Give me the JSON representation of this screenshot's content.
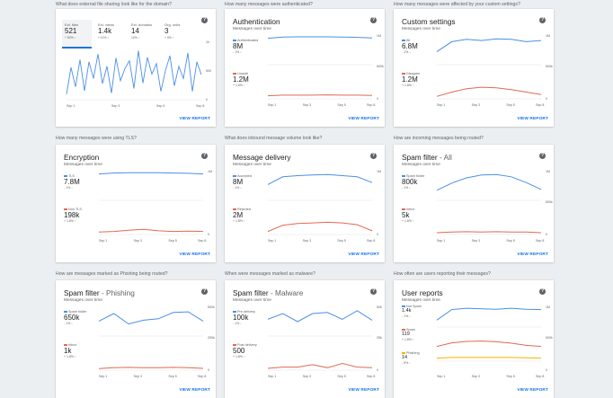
{
  "colors": {
    "blue": "#4a8fe7",
    "red": "#e06a52",
    "yellow": "#f4b400",
    "link": "#1a73e8"
  },
  "common": {
    "view_report": "VIEW REPORT",
    "subtitle": "Messages over time",
    "help_icon": "?"
  },
  "cards": [
    {
      "question": "What does external file sharing look like for the domain?",
      "tabs": [
        {
          "label": "Ext. files",
          "value": "521",
          "change": "+ 52% ↑"
        },
        {
          "label": "Ext. views",
          "value": "1.4k",
          "change": "+ 11% ↑"
        },
        {
          "label": "Ext. domains",
          "value": "14",
          "change": "12% ↓"
        },
        {
          "label": "Org. units",
          "value": "3",
          "change": "+ 0% ↑"
        }
      ],
      "yticks": [
        "1k",
        "500",
        "0"
      ],
      "xticks": [
        "Sep 1",
        "Sep 3",
        "Sep 5",
        "Sep 8"
      ],
      "chart_data": {
        "type": "line",
        "x": [
          "Sep 1",
          "",
          "",
          "",
          "",
          "",
          "",
          "",
          "",
          "",
          "",
          "",
          "",
          "",
          "",
          "",
          "",
          "",
          "",
          "",
          "",
          "",
          "",
          "",
          "",
          "",
          "",
          "",
          "",
          "",
          "Sep 8"
        ],
        "series": [
          {
            "values": [
              100,
              580,
              230,
              720,
              160,
              680,
              380,
              820,
              290,
              600,
              120,
              750,
              340,
              560,
              700,
              200,
              880,
              300,
              760,
              460,
              650,
              150,
              520,
              790,
              250,
              600,
              380,
              840,
              150,
              680,
              450
            ]
          }
        ]
      }
    },
    {
      "question": "How many messages were authenticated?",
      "title": "Authentication",
      "title_sub": "",
      "metrics": [
        {
          "label": "Authenticated",
          "value": "8M",
          "change": "- 1% ↓",
          "color": "#4a8fe7"
        },
        {
          "label": "Unauth",
          "value": "1.2M",
          "change": "+ 1.6% ↑",
          "color": "#e06a52"
        }
      ],
      "yticks": [
        "1M",
        "500k",
        "0"
      ],
      "xticks": [
        "Sep 1",
        "Sep 3",
        "Sep 5",
        "Sep 8"
      ],
      "chart_data": {
        "type": "line",
        "x": [
          "Sep 1",
          "",
          "",
          "",
          "",
          "",
          "",
          "Sep 8"
        ],
        "series": [
          {
            "name": "Authenticated",
            "values": [
              0.92,
              0.96,
              0.97,
              0.97,
              0.97,
              0.96,
              0.95,
              0.93
            ]
          },
          {
            "name": "Unauth",
            "values": [
              0.1,
              0.12,
              0.12,
              0.12,
              0.13,
              0.12,
              0.12,
              0.11
            ]
          }
        ]
      }
    },
    {
      "question": "How many messages were affected by your custom settings?",
      "title": "Custom settings",
      "title_sub": "",
      "metrics": [
        {
          "label": "All",
          "value": "6.8M",
          "change": "- 1% ↓",
          "color": "#4a8fe7"
        },
        {
          "label": "Disagree",
          "value": "1.2M",
          "change": "+ 1.8% ↑",
          "color": "#e06a52"
        }
      ],
      "yticks": [
        "1M",
        "500k",
        "0"
      ],
      "xticks": [
        "Sep 1",
        "Sep 3",
        "Sep 5",
        "Sep 8"
      ],
      "chart_data": {
        "type": "line",
        "x": [
          "Sep 1",
          "",
          "",
          "",
          "",
          "",
          "",
          "Sep 8"
        ],
        "series": [
          {
            "name": "All",
            "values": [
              0.45,
              0.8,
              0.88,
              0.84,
              0.9,
              0.88,
              0.8,
              0.84
            ]
          },
          {
            "name": "Disagree",
            "values": [
              0.08,
              0.22,
              0.33,
              0.38,
              0.36,
              0.3,
              0.22,
              0.14
            ]
          }
        ]
      }
    },
    {
      "question": "How many messages were using TLS?",
      "title": "Encryption",
      "title_sub": "",
      "metrics": [
        {
          "label": "TLS",
          "value": "7.8M",
          "change": "- 1% ↓",
          "color": "#4a8fe7"
        },
        {
          "label": "Non TLS",
          "value": "198k",
          "change": "+ 1.8% ↑",
          "color": "#e06a52"
        }
      ],
      "yticks": [
        "1M",
        "0"
      ],
      "xticks": [
        "Sep 1",
        "Sep 3",
        "Sep 5",
        "Sep 8"
      ],
      "chart_data": {
        "type": "line",
        "x": [
          "Sep 1",
          "",
          "",
          "",
          "",
          "",
          "",
          "Sep 8"
        ],
        "series": [
          {
            "name": "TLS",
            "values": [
              0.92,
              0.95,
              0.96,
              0.96,
              0.96,
              0.95,
              0.94,
              0.92
            ]
          },
          {
            "name": "Non TLS",
            "values": [
              0.08,
              0.1,
              0.14,
              0.17,
              0.12,
              0.1,
              0.11,
              0.1
            ]
          }
        ]
      }
    },
    {
      "question": "What does inbound message volume look like?",
      "title": "Message delivery",
      "title_sub": "",
      "metrics": [
        {
          "label": "Accepted",
          "value": "8M",
          "change": "- 1% ↓",
          "color": "#4a8fe7"
        },
        {
          "label": "Rejected",
          "value": "2M",
          "change": "+ 1.8% ↑",
          "color": "#e06a52"
        }
      ],
      "yticks": [
        "1M",
        "0"
      ],
      "xticks": [
        "Sep 1",
        "Sep 3",
        "Sep 5",
        "Sep 8"
      ],
      "chart_data": {
        "type": "line",
        "x": [
          "Sep 1",
          "",
          "",
          "",
          "",
          "",
          "",
          "Sep 8"
        ],
        "series": [
          {
            "name": "Accepted",
            "values": [
              0.55,
              0.82,
              0.86,
              0.88,
              0.9,
              0.86,
              0.82,
              0.62
            ]
          },
          {
            "name": "Rejected",
            "values": [
              0.1,
              0.3,
              0.36,
              0.38,
              0.4,
              0.38,
              0.32,
              0.12
            ]
          }
        ]
      }
    },
    {
      "question": "How are incoming messages being routed?",
      "title": "Spam filter",
      "title_sub": " - All",
      "metrics": [
        {
          "label": "Spam folder",
          "value": "800k",
          "change": "- 1% ↓",
          "color": "#4a8fe7"
        },
        {
          "label": "Inbox",
          "value": "5k",
          "change": "+ 1.8% ↑",
          "color": "#e06a52"
        }
      ],
      "yticks": [
        "1M",
        "500k",
        "0"
      ],
      "xticks": [
        "Sep 1",
        "Sep 3",
        "Sep 5",
        "Sep 8"
      ],
      "chart_data": {
        "type": "line",
        "x": [
          "Sep 1",
          "",
          "",
          "",
          "",
          "",
          "",
          "Sep 8"
        ],
        "series": [
          {
            "name": "Spam folder",
            "values": [
              0.35,
              0.6,
              0.78,
              0.88,
              0.9,
              0.82,
              0.62,
              0.38
            ]
          },
          {
            "name": "Inbox",
            "values": [
              0.06,
              0.08,
              0.09,
              0.08,
              0.09,
              0.08,
              0.08,
              0.06
            ]
          }
        ]
      }
    },
    {
      "question": "How are messages marked as Phishing being routed?",
      "title": "Spam filter",
      "title_sub": " - Phishing",
      "metrics": [
        {
          "label": "Spam folder",
          "value": "650k",
          "change": "- 1% ↓",
          "color": "#4a8fe7"
        },
        {
          "label": "Inbox",
          "value": "1k",
          "change": "+ 1.8% ↑",
          "color": "#e06a52"
        }
      ],
      "yticks": [
        "500k",
        "250k",
        "0"
      ],
      "xticks": [
        "Sep 1",
        "Sep 3",
        "Sep 5",
        "Sep 8"
      ],
      "chart_data": {
        "type": "line",
        "x": [
          "Sep 1",
          "",
          "",
          "",
          "",
          "",
          "",
          "Sep 8"
        ],
        "series": [
          {
            "name": "Spam folder",
            "values": [
              0.52,
              0.78,
              0.42,
              0.55,
              0.6,
              0.82,
              0.84,
              0.52
            ]
          },
          {
            "name": "Inbox",
            "values": [
              0.05,
              0.08,
              0.09,
              0.08,
              0.08,
              0.09,
              0.08,
              0.06
            ]
          }
        ]
      }
    },
    {
      "question": "When were messages marked as malware?",
      "title": "Spam filter",
      "title_sub": " - Malware",
      "metrics": [
        {
          "label": "Pre delivery",
          "value": "100k",
          "change": "- 1% ↓",
          "color": "#4a8fe7"
        },
        {
          "label": "Post delivery",
          "value": "500",
          "change": "+ 1.8% ↑",
          "color": "#e06a52"
        }
      ],
      "yticks": [
        "50k",
        "25k",
        "0"
      ],
      "xticks": [
        "Sep 1",
        "Sep 3",
        "Sep 5",
        "Sep 8"
      ],
      "chart_data": {
        "type": "line",
        "x": [
          "Sep 1",
          "",
          "",
          "",
          "",
          "",
          "",
          "Sep 8"
        ],
        "series": [
          {
            "name": "Pre delivery",
            "values": [
              0.58,
              0.78,
              0.5,
              0.78,
              0.82,
              0.58,
              0.88,
              0.55
            ]
          },
          {
            "name": "Post delivery",
            "values": [
              0.06,
              0.1,
              0.1,
              0.18,
              0.08,
              0.22,
              0.1,
              0.08
            ]
          }
        ]
      }
    },
    {
      "question": "How often are users reporting their messages?",
      "title": "User reports",
      "title_sub": "",
      "metrics": [
        {
          "label": "Not Spam",
          "value": "1.4k",
          "change": "- 1% ↓",
          "color": "#4a8fe7"
        },
        {
          "label": "Spam",
          "value": "119",
          "change": "+ 1.8% ↑",
          "color": "#e06a52"
        },
        {
          "label": "Phishing",
          "value": "14",
          "change": "- 5% ↓",
          "color": "#f4b400"
        }
      ],
      "yticks": [
        "1M",
        "500k",
        "0"
      ],
      "xticks": [
        "Sep 1",
        "Sep 3",
        "Sep 5",
        "Sep 8"
      ],
      "chart_data": {
        "type": "line",
        "x": [
          "Sep 1",
          "",
          "",
          "",
          "",
          "",
          "",
          "Sep 8"
        ],
        "series": [
          {
            "name": "Not Spam",
            "values": [
              0.35,
              0.88,
              0.95,
              0.92,
              0.9,
              0.95,
              0.9,
              0.88
            ]
          },
          {
            "name": "Spam",
            "values": [
              0.12,
              0.32,
              0.4,
              0.42,
              0.38,
              0.3,
              0.18,
              0.12
            ]
          },
          {
            "name": "Phishing",
            "values": [
              0.1,
              0.12,
              0.12,
              0.12,
              0.12,
              0.12,
              0.11,
              0.1
            ]
          }
        ]
      }
    }
  ]
}
